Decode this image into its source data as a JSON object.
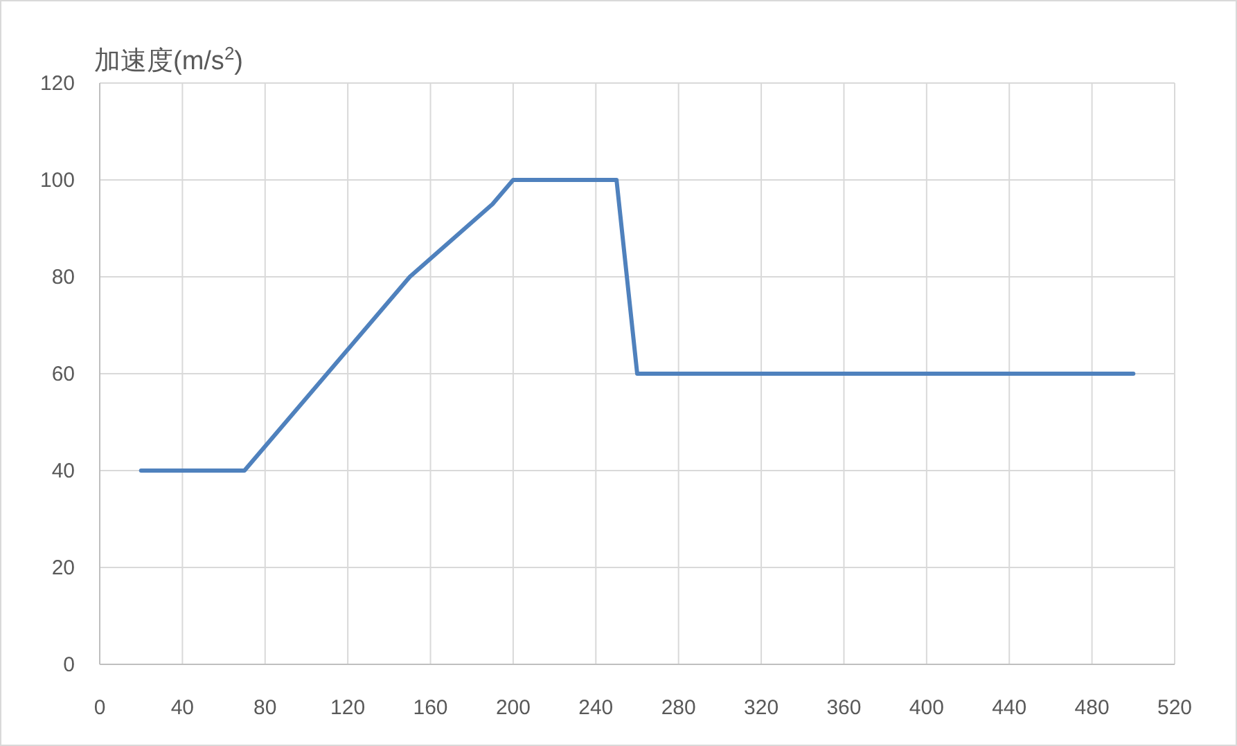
{
  "chart_data": {
    "type": "line",
    "ylabel": "加速度(m/s$^{2}$)",
    "x": [
      20,
      70,
      150,
      190,
      200,
      250,
      260,
      500
    ],
    "series": [
      {
        "color": "#4f81bd",
        "values": [
          40,
          40,
          80,
          95,
          100,
          100,
          60,
          60
        ]
      }
    ],
    "xlim": [
      0,
      520
    ],
    "xticks": [
      0,
      40,
      80,
      120,
      160,
      200,
      240,
      280,
      320,
      360,
      400,
      440,
      480,
      520
    ],
    "ylim": [
      0,
      120
    ],
    "yticks": [
      0,
      20,
      40,
      60,
      80,
      100,
      120
    ],
    "grid": true,
    "marker": "none",
    "line_style": "solid"
  }
}
